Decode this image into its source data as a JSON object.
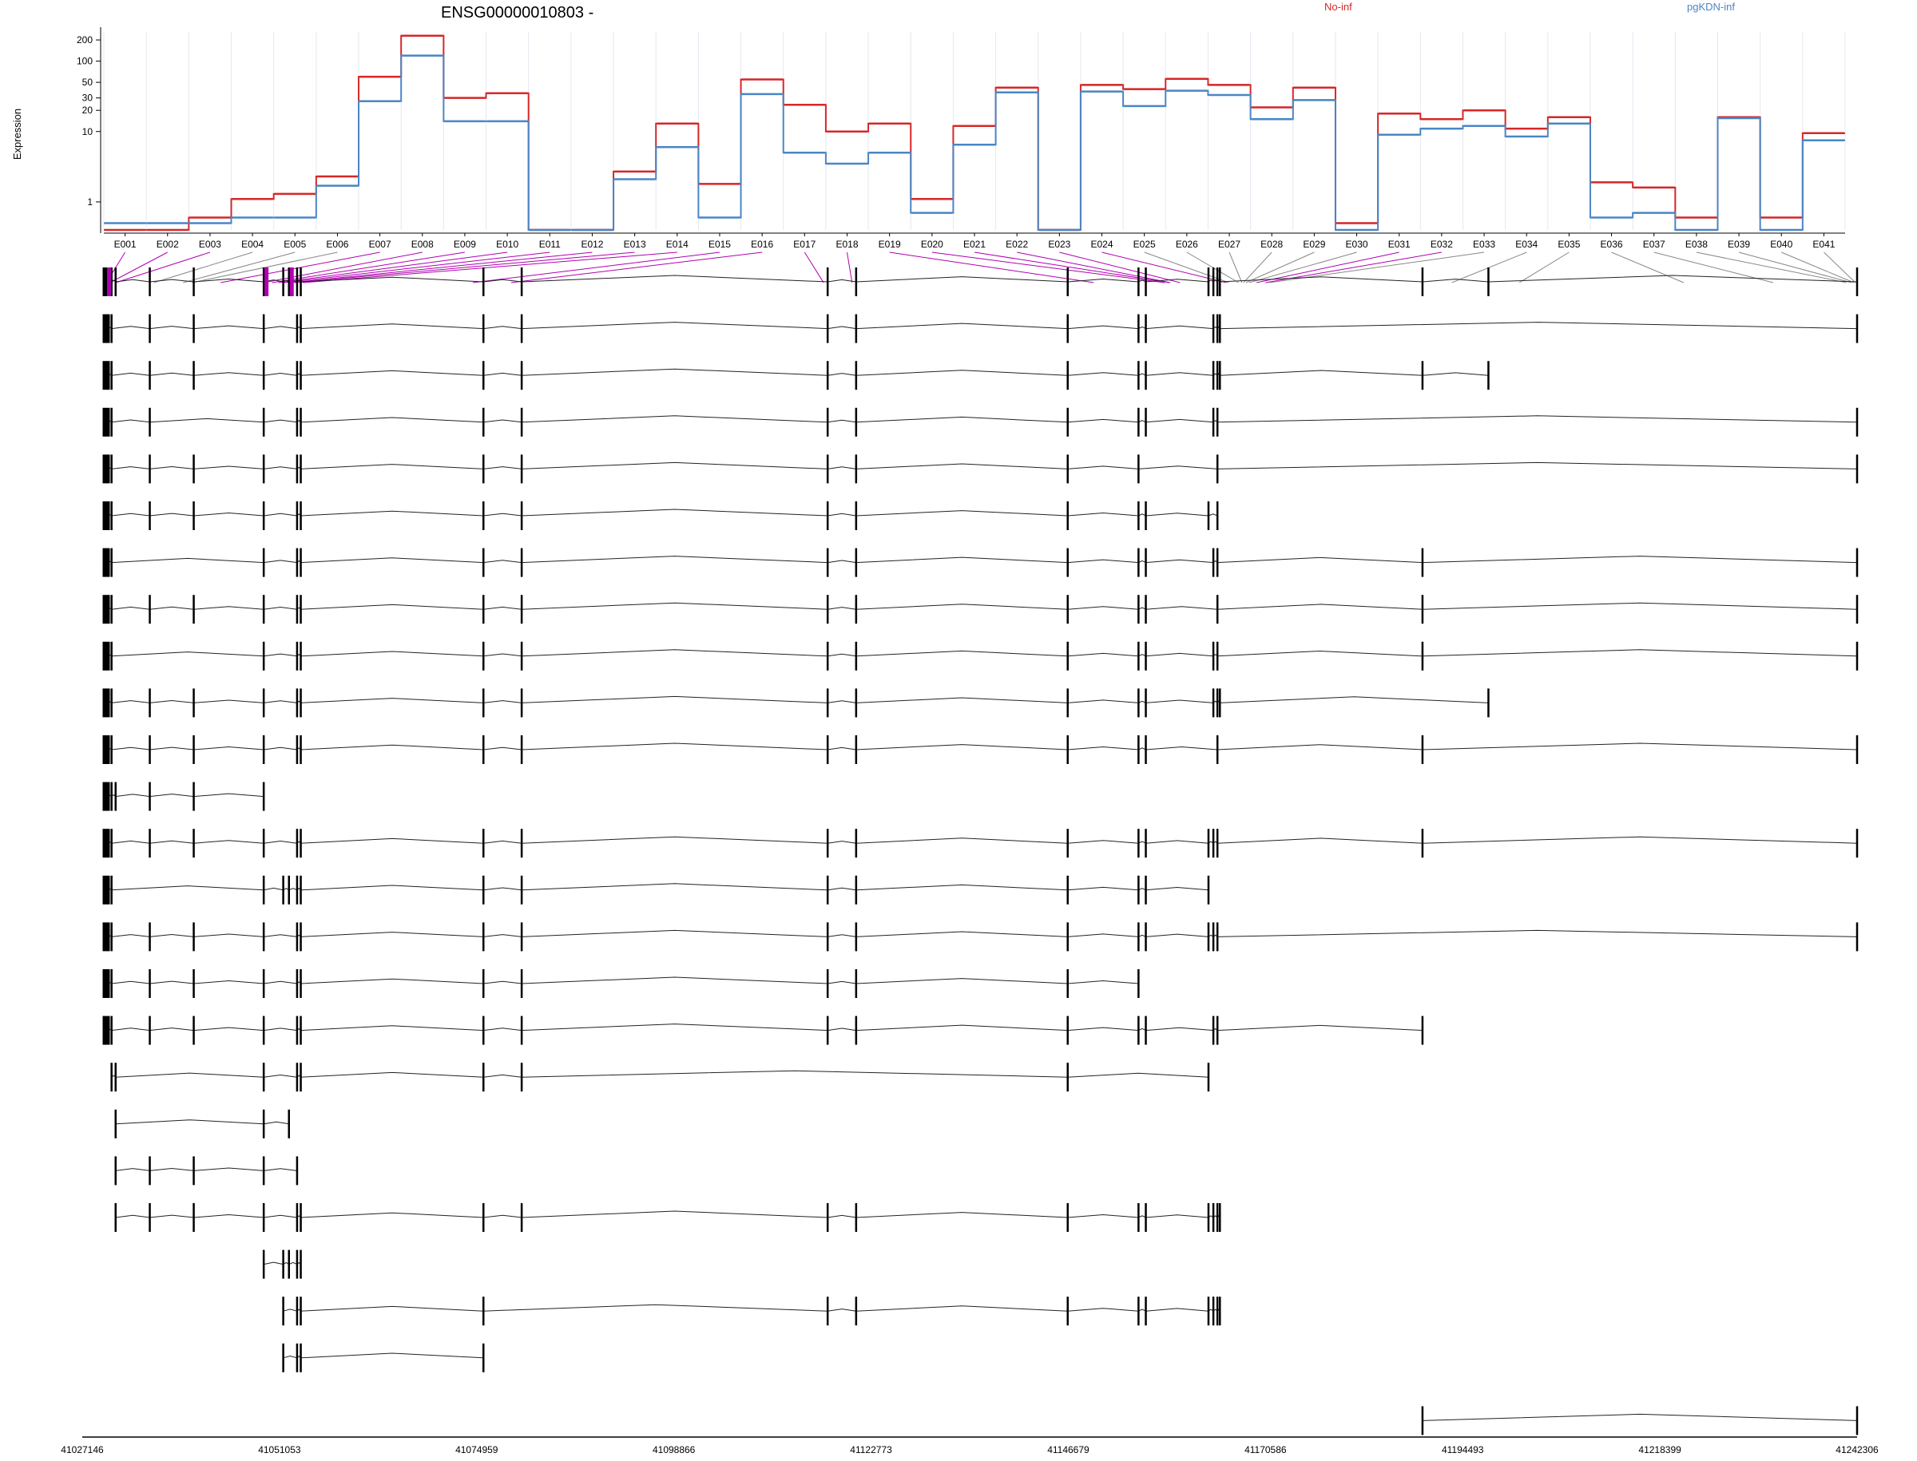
{
  "chart_data": {
    "type": "line",
    "title": "ENSG00000010803 -",
    "xlabel": "",
    "ylabel": "Expression",
    "yscale": "log",
    "ylim": [
      0.4,
      260
    ],
    "yticks": [
      1,
      10,
      20,
      30,
      50,
      100,
      200
    ],
    "grid": true,
    "legend_placement": "top",
    "categories": [
      "E001",
      "E002",
      "E003",
      "E004",
      "E005",
      "E006",
      "E007",
      "E008",
      "E009",
      "E010",
      "E011",
      "E012",
      "E013",
      "E014",
      "E015",
      "E016",
      "E017",
      "E018",
      "E019",
      "E020",
      "E021",
      "E022",
      "E023",
      "E024",
      "E025",
      "E026",
      "E027",
      "E028",
      "E029",
      "E030",
      "E031",
      "E032",
      "E033",
      "E034",
      "E035",
      "E036",
      "E037",
      "E038",
      "E039",
      "E040",
      "E041"
    ],
    "series": [
      {
        "name": "No-inf",
        "color": "#d62728",
        "values": [
          0.4,
          0.4,
          0.6,
          1.1,
          1.3,
          2.3,
          60,
          230,
          30,
          35,
          0.4,
          0.4,
          2.7,
          13,
          1.8,
          55,
          24,
          10,
          13,
          1.1,
          12,
          42,
          0.4,
          46,
          40,
          56,
          46,
          22,
          42,
          0.5,
          18,
          15,
          20,
          11,
          16,
          1.9,
          1.6,
          0.6,
          16,
          0.6,
          9.5
        ]
      },
      {
        "name": "pgKDN-inf",
        "color": "#4a86c5",
        "values": [
          0.5,
          0.5,
          0.5,
          0.6,
          0.6,
          1.7,
          27,
          120,
          14,
          14,
          0.4,
          0.4,
          2.1,
          6,
          0.6,
          34,
          5,
          3.5,
          5,
          0.7,
          6.5,
          36,
          0.4,
          37,
          23,
          38,
          33,
          15,
          28,
          0.4,
          9,
          11,
          12,
          8.5,
          13,
          0.6,
          0.7,
          0.4,
          15.5,
          0.4,
          7.5
        ]
      }
    ],
    "genomic_coordinates": [
      "41027146",
      "41051053",
      "41074959",
      "41098866",
      "41122773",
      "41146679",
      "41170586",
      "41194493",
      "41218399",
      "41242306"
    ]
  },
  "colors": {
    "grid": "#e4e8f0",
    "link": "#888888",
    "highlight": "#b000b0",
    "axis": "#000000"
  }
}
